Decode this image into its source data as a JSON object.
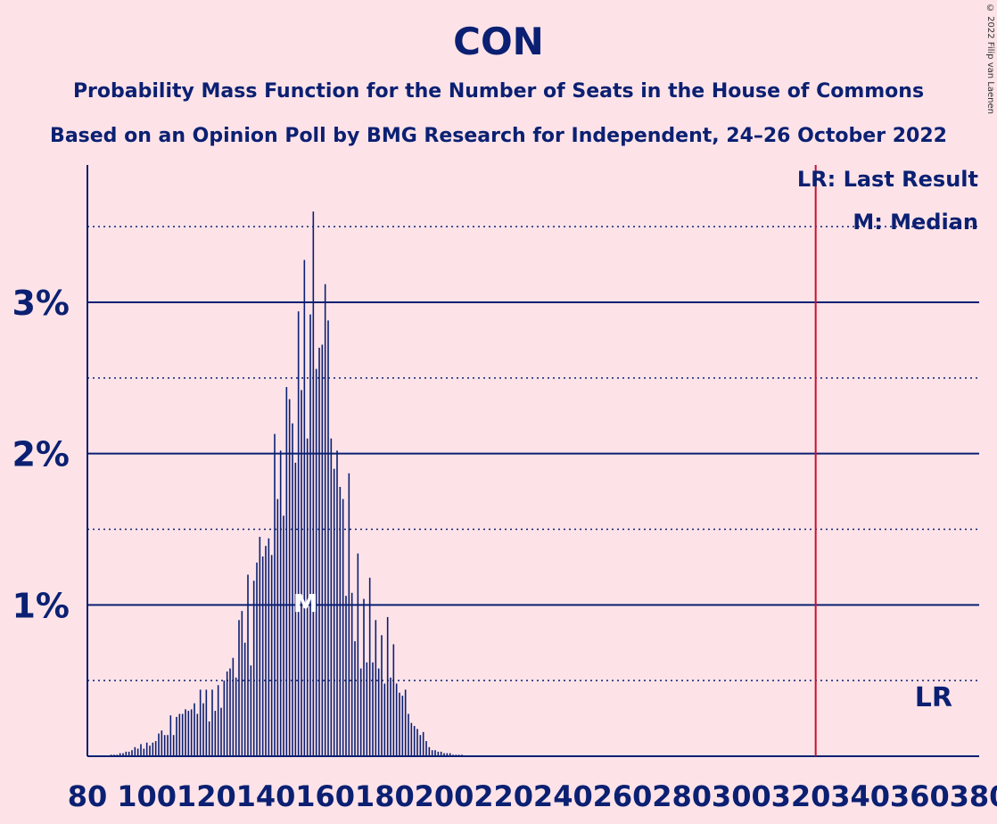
{
  "title": "CON",
  "subtitle1": "Probability Mass Function for the Number of Seats in the House of Commons",
  "subtitle2": "Based on an Opinion Poll by BMG Research for Independent, 24–26 October 2022",
  "copyright": "© 2022 Filip van Laenen",
  "colors": {
    "background": "#fde3e8",
    "text": "#0b2072",
    "last_result_line": "#c8102e",
    "bars": "#0b2072"
  },
  "chart_data": {
    "type": "bar",
    "x_ticks": [
      80,
      100,
      120,
      140,
      160,
      180,
      200,
      220,
      240,
      260,
      280,
      300,
      320,
      340,
      360,
      380
    ],
    "y_ticks_major": [
      1,
      2,
      3
    ],
    "y_tick_labels": [
      "1%",
      "2%",
      "3%"
    ],
    "y_minor_gridlines": [
      0.5,
      1.5,
      2.5,
      3.5
    ],
    "xlim": [
      80,
      380
    ],
    "ylim": [
      0,
      3.9
    ],
    "last_result": 325,
    "last_result_label": "LR",
    "median": 154,
    "median_label": "M",
    "legend": [
      "LR: Last Result",
      "M: Median"
    ],
    "legend_position": "top-right",
    "x": [
      80,
      81,
      82,
      83,
      84,
      85,
      86,
      87,
      88,
      89,
      90,
      91,
      92,
      93,
      94,
      95,
      96,
      97,
      98,
      99,
      100,
      101,
      102,
      103,
      104,
      105,
      106,
      107,
      108,
      109,
      110,
      111,
      112,
      113,
      114,
      115,
      116,
      117,
      118,
      119,
      120,
      121,
      122,
      123,
      124,
      125,
      126,
      127,
      128,
      129,
      130,
      131,
      132,
      133,
      134,
      135,
      136,
      137,
      138,
      139,
      140,
      141,
      142,
      143,
      144,
      145,
      146,
      147,
      148,
      149,
      150,
      151,
      152,
      153,
      154,
      155,
      156,
      157,
      158,
      159,
      160,
      161,
      162,
      163,
      164,
      165,
      166,
      167,
      168,
      169,
      170,
      171,
      172,
      173,
      174,
      175,
      176,
      177,
      178,
      179,
      180,
      181,
      182,
      183,
      184,
      185,
      186,
      187,
      188,
      189,
      190,
      191,
      192,
      193,
      194,
      195,
      196,
      197,
      198,
      199,
      200,
      201,
      202,
      203,
      204,
      205,
      206,
      207,
      208,
      209,
      210,
      211,
      212,
      213,
      214,
      215,
      216,
      217,
      218,
      219,
      220
    ],
    "values": [
      0.0,
      0.0,
      0.0,
      0.0,
      0.0,
      0.0,
      0.0,
      0.0,
      0.01,
      0.01,
      0.01,
      0.02,
      0.02,
      0.03,
      0.03,
      0.04,
      0.06,
      0.05,
      0.08,
      0.05,
      0.09,
      0.07,
      0.09,
      0.1,
      0.15,
      0.17,
      0.14,
      0.14,
      0.27,
      0.14,
      0.26,
      0.28,
      0.28,
      0.31,
      0.3,
      0.31,
      0.35,
      0.28,
      0.44,
      0.35,
      0.44,
      0.23,
      0.44,
      0.3,
      0.47,
      0.32,
      0.5,
      0.56,
      0.58,
      0.65,
      0.52,
      0.9,
      0.96,
      0.75,
      1.2,
      0.6,
      1.16,
      1.28,
      1.45,
      1.32,
      1.39,
      1.44,
      1.33,
      2.13,
      1.7,
      2.02,
      1.59,
      2.44,
      2.36,
      2.2,
      1.94,
      2.94,
      2.42,
      3.28,
      2.1,
      2.92,
      3.6,
      2.56,
      2.7,
      2.72,
      3.12,
      2.88,
      2.1,
      1.9,
      2.02,
      1.78,
      1.7,
      1.06,
      1.87,
      1.08,
      0.76,
      1.34,
      0.58,
      1.04,
      0.62,
      1.18,
      0.62,
      0.9,
      0.58,
      0.8,
      0.48,
      0.92,
      0.52,
      0.74,
      0.48,
      0.42,
      0.4,
      0.44,
      0.28,
      0.22,
      0.2,
      0.18,
      0.14,
      0.16,
      0.1,
      0.06,
      0.04,
      0.04,
      0.03,
      0.03,
      0.02,
      0.02,
      0.02,
      0.01,
      0.01,
      0.01,
      0.01,
      0.0,
      0.0,
      0.0,
      0.0,
      0.0,
      0.0,
      0.0,
      0.0,
      0.0,
      0.0,
      0.0,
      0.0,
      0.0,
      0.0
    ]
  }
}
